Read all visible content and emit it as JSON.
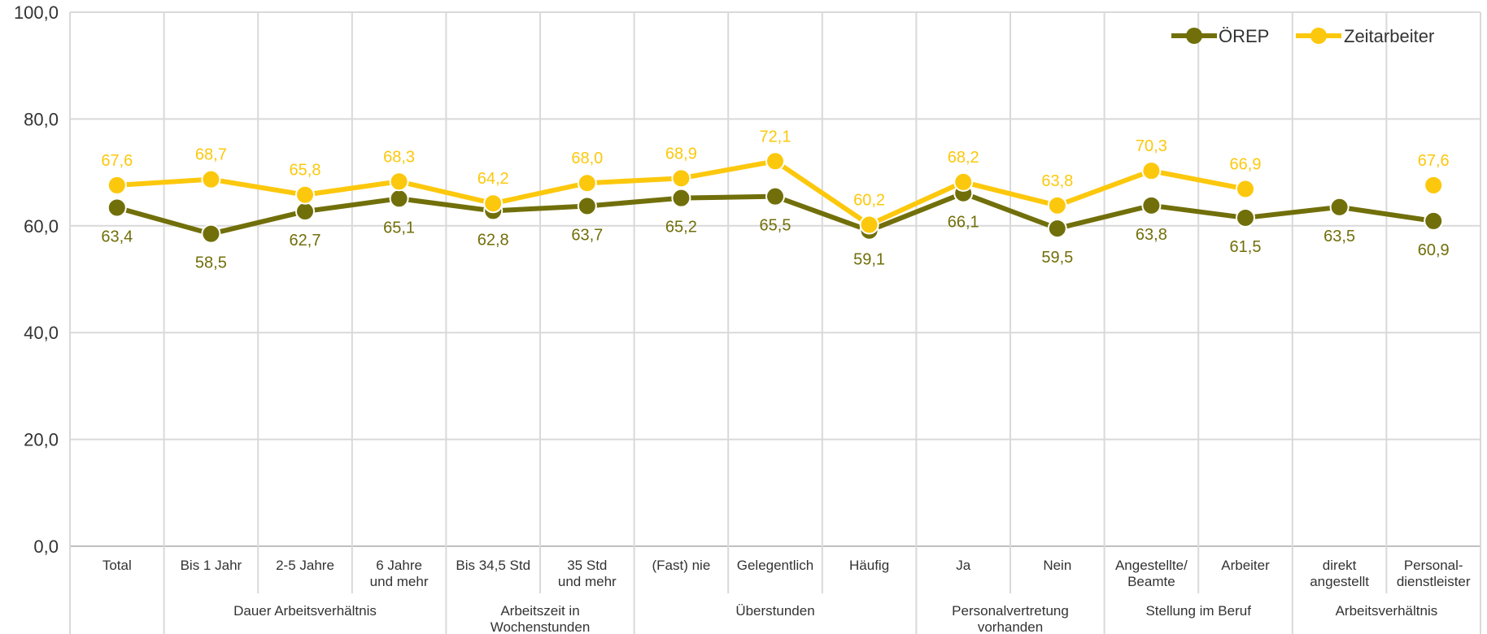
{
  "chart_data": {
    "type": "line",
    "categories": [
      [
        "Total"
      ],
      [
        "Bis 1 Jahr"
      ],
      [
        "2-5 Jahre"
      ],
      [
        "6 Jahre",
        "und mehr"
      ],
      [
        "Bis 34,5 Std"
      ],
      [
        "35 Std",
        "und mehr"
      ],
      [
        "(Fast) nie"
      ],
      [
        "Gelegentlich"
      ],
      [
        "Häufig"
      ],
      [
        "Ja"
      ],
      [
        "Nein"
      ],
      [
        "Angestellte/",
        "Beamte"
      ],
      [
        "Arbeiter"
      ],
      [
        "direkt",
        "angestellt"
      ],
      [
        "Personal-",
        "dienstleister"
      ]
    ],
    "groups": [
      {
        "label": [
          "Dauer Arbeitsverhältnis"
        ],
        "start": 1,
        "end": 3
      },
      {
        "label": [
          "Arbeitszeit in",
          "Wochenstunden"
        ],
        "start": 4,
        "end": 5
      },
      {
        "label": [
          "Überstunden"
        ],
        "start": 6,
        "end": 8
      },
      {
        "label": [
          "Personalvertretung",
          "vorhanden"
        ],
        "start": 9,
        "end": 10
      },
      {
        "label": [
          "Stellung im Beruf"
        ],
        "start": 11,
        "end": 12
      },
      {
        "label": [
          "Arbeitsverhältnis"
        ],
        "start": 13,
        "end": 14
      }
    ],
    "series": [
      {
        "name": "ÖREP",
        "color": "#716f0a",
        "values": [
          63.4,
          58.5,
          62.7,
          65.1,
          62.8,
          63.7,
          65.2,
          65.5,
          59.1,
          66.1,
          59.5,
          63.8,
          61.5,
          63.5,
          60.9
        ],
        "labels": [
          "63,4",
          "58,5",
          "62,7",
          "65,1",
          "62,8",
          "63,7",
          "65,2",
          "65,5",
          "59,1",
          "66,1",
          "59,5",
          "63,8",
          "61,5",
          "63,5",
          "60,9"
        ]
      },
      {
        "name": "Zeitarbeiter",
        "color": "#fcc80d",
        "values": [
          67.6,
          68.7,
          65.8,
          68.3,
          64.2,
          68.0,
          68.9,
          72.1,
          60.2,
          68.2,
          63.8,
          70.3,
          66.9,
          null,
          67.6
        ],
        "labels": [
          "67,6",
          "68,7",
          "65,8",
          "68,3",
          "64,2",
          "68,0",
          "68,9",
          "72,1",
          "60,2",
          "68,2",
          "63,8",
          "70,3",
          "66,9",
          null,
          "67,6"
        ]
      }
    ],
    "y_ticks": [
      "0,0",
      "20,0",
      "40,0",
      "60,0",
      "80,0",
      "100,0"
    ],
    "ylim": [
      0,
      100
    ],
    "grid": true,
    "legend_position": "top-right"
  }
}
